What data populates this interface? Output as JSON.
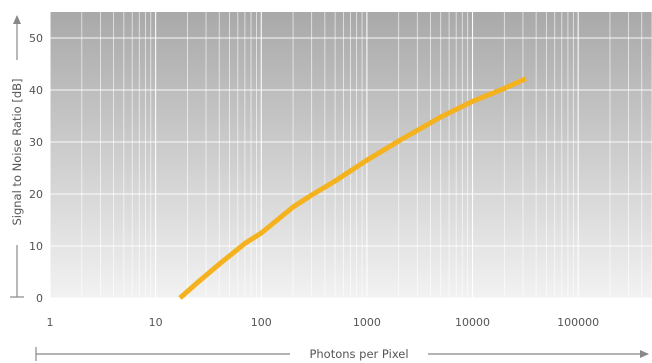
{
  "chart_data": {
    "type": "line",
    "xlabel": "Photons per Pixel",
    "ylabel": "Signal to Noise Ratio [dB]",
    "x_scale": "log",
    "xlim": [
      1,
      500000
    ],
    "ylim": [
      0,
      55
    ],
    "x_ticks": [
      1,
      10,
      100,
      1000,
      10000,
      100000
    ],
    "x_tick_labels": [
      "1",
      "10",
      "100",
      "1000",
      "10000",
      "100000"
    ],
    "y_ticks": [
      0,
      10,
      20,
      30,
      40,
      50
    ],
    "y_tick_labels": [
      "0",
      "10",
      "20",
      "30",
      "40",
      "50"
    ],
    "grid": true,
    "colors": {
      "plot_background_top": "#a9a9a9",
      "plot_background_bottom": "#f2f2f2",
      "grid": "#ffffff",
      "axis_arrow": "#888888",
      "series": "#f5b21f"
    },
    "series": [
      {
        "x": [
          17,
          25,
          40,
          70,
          100,
          200,
          300,
          500,
          1000,
          2000,
          5000,
          10000,
          20000,
          32000
        ],
        "y": [
          0,
          3,
          6.5,
          10.5,
          12.5,
          17.5,
          19.8,
          22.5,
          26.5,
          30.2,
          34.8,
          37.8,
          40.3,
          42.2
        ]
      }
    ]
  }
}
